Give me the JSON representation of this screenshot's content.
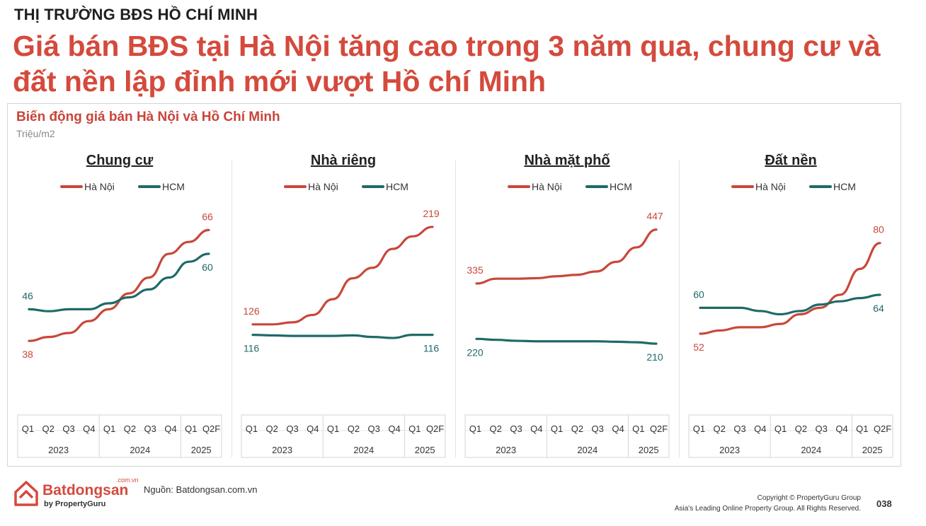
{
  "header": {
    "eyebrow": "THỊ TRƯỜNG BĐS HỒ CHÍ MINH",
    "headline": "Giá bán BĐS tại Hà Nội tăng cao trong 3 năm qua, chung cư và đất nền lập đỉnh mới vượt Hồ chí Minh"
  },
  "card": {
    "title": "Biến động giá bán Hà Nội và Hồ Chí Minh",
    "unit": "Triệu/m2"
  },
  "colors": {
    "hanoi": "#c9473a",
    "hcm": "#1f6a67",
    "accent": "#d44a3c"
  },
  "chart_data": [
    {
      "type": "line",
      "title": "Chung cư",
      "categories": [
        "Q1",
        "Q2",
        "Q3",
        "Q4",
        "Q1",
        "Q2",
        "Q3",
        "Q4",
        "Q1",
        "Q2F"
      ],
      "years": [
        "2023",
        "2024",
        "2025"
      ],
      "series": [
        {
          "name": "Hà Nội",
          "values": [
            38,
            39,
            40,
            43,
            46,
            50,
            54,
            60,
            63,
            66
          ],
          "start_label": "38",
          "end_label": "66"
        },
        {
          "name": "HCM",
          "values": [
            46,
            45.5,
            46,
            46,
            47.5,
            49,
            51,
            54,
            58,
            60
          ],
          "start_label": "46",
          "end_label": "60"
        }
      ],
      "ylim": [
        30,
        75
      ]
    },
    {
      "type": "line",
      "title": "Nhà riêng",
      "categories": [
        "Q1",
        "Q2",
        "Q3",
        "Q4",
        "Q1",
        "Q2",
        "Q3",
        "Q4",
        "Q1",
        "Q2F"
      ],
      "years": [
        "2023",
        "2024",
        "2025"
      ],
      "series": [
        {
          "name": "Hà Nội",
          "values": [
            126,
            126,
            128,
            135,
            150,
            170,
            180,
            198,
            210,
            219
          ],
          "start_label": "126",
          "end_label": "219"
        },
        {
          "name": "HCM",
          "values": [
            116,
            115.5,
            115,
            115,
            115,
            115.5,
            114,
            113,
            116,
            116
          ],
          "start_label": "116",
          "end_label": "116"
        }
      ],
      "ylim": [
        80,
        250
      ]
    },
    {
      "type": "line",
      "title": "Nhà mặt phố",
      "categories": [
        "Q1",
        "Q2",
        "Q3",
        "Q4",
        "Q1",
        "Q2",
        "Q3",
        "Q4",
        "Q1",
        "Q2F"
      ],
      "years": [
        "2023",
        "2024",
        "2025"
      ],
      "series": [
        {
          "name": "Hà Nội",
          "values": [
            335,
            345,
            345,
            346,
            350,
            353,
            360,
            380,
            410,
            447
          ],
          "start_label": "335",
          "end_label": "447"
        },
        {
          "name": "HCM",
          "values": [
            220,
            218,
            216,
            215,
            215,
            215,
            215,
            214,
            213,
            210
          ],
          "start_label": "220",
          "end_label": "210"
        }
      ],
      "ylim": [
        150,
        520
      ]
    },
    {
      "type": "line",
      "title": "Đất nền",
      "categories": [
        "Q1",
        "Q2",
        "Q3",
        "Q4",
        "Q1",
        "Q2",
        "Q3",
        "Q4",
        "Q1",
        "Q2F"
      ],
      "years": [
        "2023",
        "2024",
        "2025"
      ],
      "series": [
        {
          "name": "Hà Nội",
          "values": [
            52,
            53,
            54,
            54,
            55,
            58,
            60,
            64,
            72,
            80
          ],
          "start_label": "52",
          "end_label": "80"
        },
        {
          "name": "HCM",
          "values": [
            60,
            60,
            60,
            59,
            58,
            59,
            61,
            62,
            63,
            64
          ],
          "start_label": "60",
          "end_label": "64"
        }
      ],
      "ylim": [
        40,
        95
      ]
    }
  ],
  "footer": {
    "logo_word": "Batdongsan",
    "logo_domain": ".com.vn",
    "logo_sub": "by PropertyGuru",
    "source": "Nguồn: Batdongsan.com.vn",
    "copyright_line1": "Copyright © PropertyGuru Group",
    "copyright_line2": "Asia's Leading Online Property Group. All Rights Reserved.",
    "page_number": "038"
  }
}
